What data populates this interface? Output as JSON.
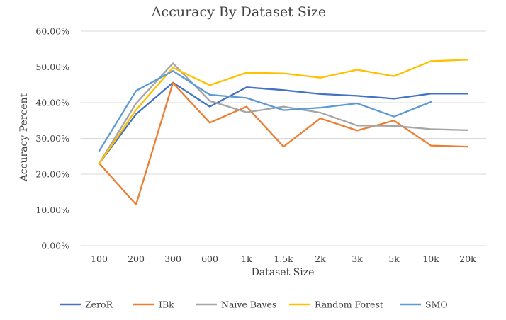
{
  "chart_data": {
    "type": "line",
    "title": "Accuracy By Dataset Size",
    "xlabel": "Dataset Size",
    "ylabel": "Accuracy Percent",
    "categories": [
      "100",
      "200",
      "300",
      "600",
      "1k",
      "1.5k",
      "2k",
      "3k",
      "5k",
      "10k",
      "20k"
    ],
    "ylim": [
      0,
      60
    ],
    "yticks": [
      "0.00%",
      "10.00%",
      "20.00%",
      "30.00%",
      "40.00%",
      "50.00%",
      "60.00%"
    ],
    "grid": true,
    "legend_position": "bottom",
    "series": [
      {
        "name": "ZeroR",
        "color": "#4472c4",
        "values": [
          23.0,
          36.8,
          45.6,
          38.9,
          44.3,
          43.5,
          42.4,
          41.9,
          41.1,
          42.5,
          42.5
        ]
      },
      {
        "name": "IBk",
        "color": "#ed7d31",
        "values": [
          23.0,
          11.5,
          45.5,
          34.4,
          38.9,
          27.7,
          35.6,
          32.2,
          35.0,
          28.0,
          27.7
        ]
      },
      {
        "name": "Naïve Bayes",
        "color": "#a5a5a5",
        "values": [
          23.0,
          39.8,
          51.0,
          40.5,
          37.3,
          38.9,
          37.2,
          33.6,
          33.5,
          32.6,
          32.3
        ]
      },
      {
        "name": "Random Forest",
        "color": "#ffc000",
        "values": [
          23.0,
          38.0,
          49.8,
          44.9,
          48.4,
          48.2,
          47.0,
          49.2,
          47.4,
          51.6,
          52.0
        ]
      },
      {
        "name": "SMO",
        "color": "#5b9bd5",
        "values": [
          26.5,
          43.3,
          48.9,
          42.2,
          41.3,
          37.9,
          38.6,
          39.8,
          36.1,
          40.2,
          null
        ]
      }
    ]
  }
}
